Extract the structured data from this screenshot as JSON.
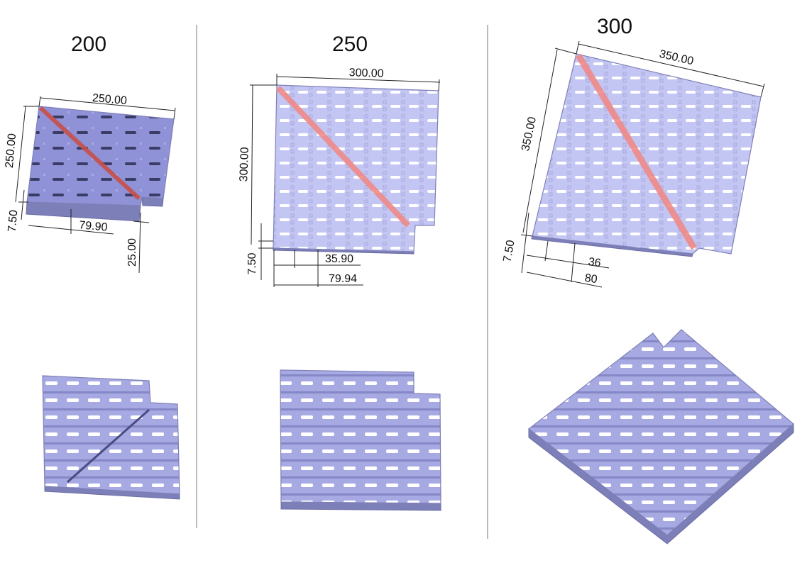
{
  "panels": [
    {
      "title": "200",
      "dimensions": [
        "250.00",
        "250.00",
        "7.50",
        "79.90",
        "25.00"
      ]
    },
    {
      "title": "250",
      "dimensions": [
        "300.00",
        "300.00",
        "7.50",
        "35.90",
        "79.94"
      ]
    },
    {
      "title": "300",
      "dimensions": [
        "350.00",
        "350.00",
        "7.50",
        "36",
        "80"
      ]
    }
  ]
}
